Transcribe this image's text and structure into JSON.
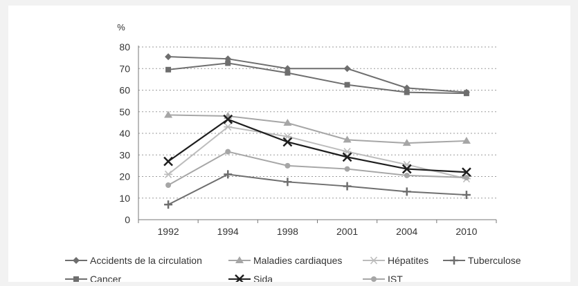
{
  "chart_data": {
    "type": "line",
    "y_unit_label": "%",
    "categories": [
      "1992",
      "1994",
      "1998",
      "2001",
      "2004",
      "2010"
    ],
    "ylim": [
      0,
      80
    ],
    "y_ticks": [
      0,
      10,
      20,
      30,
      40,
      50,
      60,
      70,
      80
    ],
    "grid": "horizontal-dotted",
    "legend_position": "bottom",
    "series": [
      {
        "name": "Accidents de la circulation",
        "marker": "diamond",
        "color": "#6e6e6e",
        "values": [
          75.5,
          74.5,
          70,
          70,
          61,
          59
        ]
      },
      {
        "name": "Maladies cardiaques",
        "marker": "triangle",
        "color": "#a6a6a6",
        "values": [
          48.5,
          48,
          44.8,
          37,
          35.5,
          36.5
        ]
      },
      {
        "name": "Hépatites",
        "marker": "asterisk",
        "color": "#bcbcbc",
        "values": [
          21,
          43,
          38.5,
          31.5,
          25.5,
          19
        ]
      },
      {
        "name": "Tuberculose",
        "marker": "plus",
        "color": "#6e6e6e",
        "values": [
          7,
          21,
          17.5,
          15.5,
          13,
          11.5
        ]
      },
      {
        "name": "Cancer",
        "marker": "square",
        "color": "#6e6e6e",
        "values": [
          69.5,
          72.5,
          68,
          62.5,
          59,
          58.5
        ]
      },
      {
        "name": "Sida",
        "marker": "x",
        "color": "#1e1e1e",
        "values": [
          27,
          46.5,
          36,
          29,
          23.5,
          22
        ]
      },
      {
        "name": "IST",
        "marker": "circle",
        "color": "#a6a6a6",
        "values": [
          16,
          31.5,
          25,
          23.5,
          20.5,
          19.5
        ]
      }
    ]
  }
}
